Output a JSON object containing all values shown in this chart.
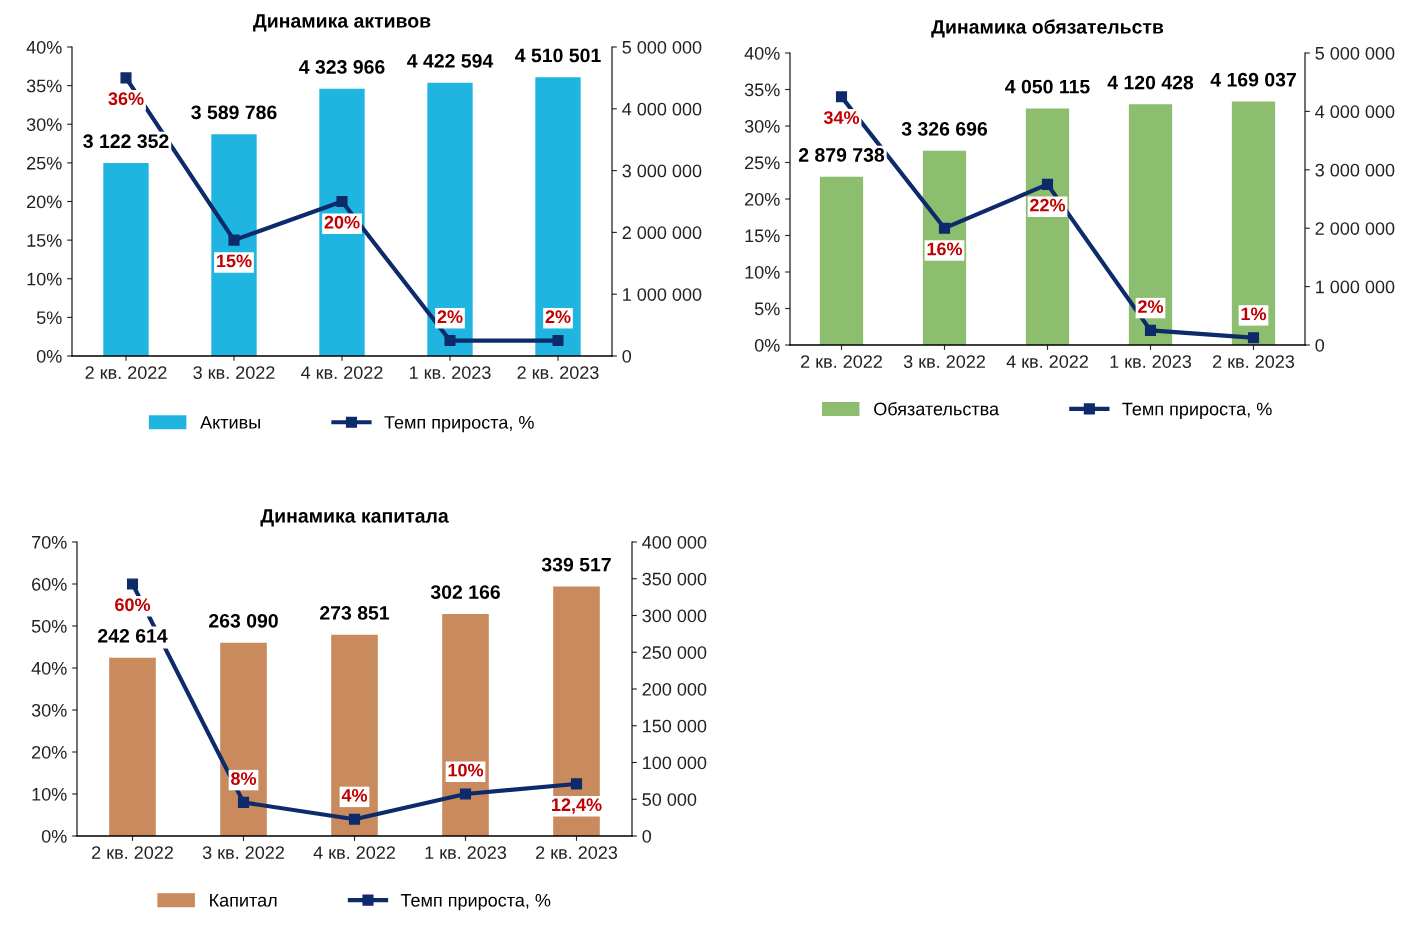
{
  "chart_data": [
    {
      "type": "bar",
      "title": "Динамика активов",
      "categories": [
        "2 кв. 2022",
        "3 кв. 2022",
        "4 кв. 2022",
        "1 кв. 2023",
        "2 кв. 2023"
      ],
      "series": [
        {
          "name": "Активы",
          "type": "bar",
          "axis": "y2",
          "color": "#1fb5e0",
          "values": [
            3122352,
            3589786,
            4323966,
            4422594,
            4510501
          ],
          "value_labels": [
            "3 122 352",
            "3 589 786",
            "4 323 966",
            "4 422 594",
            "4 510 501"
          ]
        },
        {
          "name": "Темп прироста, %",
          "type": "line",
          "axis": "y",
          "color": "#0d2b6b",
          "values": [
            36,
            15,
            20,
            2,
            2
          ],
          "value_labels": [
            "36%",
            "15%",
            "20%",
            "2%",
            "2%"
          ]
        }
      ],
      "ylim": [
        0,
        40
      ],
      "yticks": [
        {
          "value": 0,
          "label": "0%"
        },
        {
          "value": 5,
          "label": "5%"
        },
        {
          "value": 10,
          "label": "10%"
        },
        {
          "value": 15,
          "label": "15%"
        },
        {
          "value": 20,
          "label": "20%"
        },
        {
          "value": 25,
          "label": "25%"
        },
        {
          "value": 30,
          "label": "30%"
        },
        {
          "value": 35,
          "label": "35%"
        },
        {
          "value": 40,
          "label": "40%"
        }
      ],
      "y2lim": [
        0,
        5000000
      ],
      "y2ticks": [
        0,
        {
          "value": 1000000,
          "label": "1 000 000"
        },
        {
          "value": 2000000,
          "label": "2 000 000"
        },
        {
          "value": 3000000,
          "label": "3 000 000"
        },
        {
          "value": 4000000,
          "label": "4 000 000"
        },
        {
          "value": 5000000,
          "label": "5 000 000"
        }
      ],
      "marker": "square",
      "legend": "bottom",
      "grid": false
    },
    {
      "type": "bar",
      "title": "Динамика обязательств",
      "categories": [
        "2 кв. 2022",
        "3 кв. 2022",
        "4 кв. 2022",
        "1 кв. 2023",
        "2 кв. 2023"
      ],
      "series": [
        {
          "name": "Обязательства",
          "type": "bar",
          "axis": "y2",
          "color": "#8dbd6e",
          "values": [
            2879738,
            3326696,
            4050115,
            4120428,
            4169037
          ],
          "value_labels": [
            "2 879 738",
            "3 326 696",
            "4 050 115",
            "4 120 428",
            "4 169 037"
          ]
        },
        {
          "name": "Темп прироста, %",
          "type": "line",
          "axis": "y",
          "color": "#0d2b6b",
          "values": [
            34,
            16,
            22,
            2,
            1
          ],
          "value_labels": [
            "34%",
            "16%",
            "22%",
            "2%",
            "1%"
          ]
        }
      ],
      "ylim": [
        0,
        40
      ],
      "yticks": [
        {
          "value": 0,
          "label": "0%"
        },
        {
          "value": 5,
          "label": "5%"
        },
        {
          "value": 10,
          "label": "10%"
        },
        {
          "value": 15,
          "label": "15%"
        },
        {
          "value": 20,
          "label": "20%"
        },
        {
          "value": 25,
          "label": "25%"
        },
        {
          "value": 30,
          "label": "30%"
        },
        {
          "value": 35,
          "label": "35%"
        },
        {
          "value": 40,
          "label": "40%"
        }
      ],
      "y2lim": [
        0,
        5000000
      ],
      "y2ticks": [
        0,
        {
          "value": 1000000,
          "label": "1 000 000"
        },
        {
          "value": 2000000,
          "label": "2 000 000"
        },
        {
          "value": 3000000,
          "label": "3 000 000"
        },
        {
          "value": 4000000,
          "label": "4 000 000"
        },
        {
          "value": 5000000,
          "label": "5 000 000"
        }
      ],
      "marker": "square",
      "legend": "bottom",
      "grid": false
    },
    {
      "type": "bar",
      "title": "Динамика капитала",
      "categories": [
        "2 кв. 2022",
        "3 кв. 2022",
        "4 кв. 2022",
        "1 кв. 2023",
        "2 кв. 2023"
      ],
      "series": [
        {
          "name": "Капитал",
          "type": "bar",
          "axis": "y2",
          "color": "#c98a5e",
          "values": [
            242614,
            263090,
            273851,
            302166,
            339517
          ],
          "value_labels": [
            "242 614",
            "263 090",
            "273 851",
            "302 166",
            "339 517"
          ]
        },
        {
          "name": "Темп прироста, %",
          "type": "line",
          "axis": "y",
          "color": "#0d2b6b",
          "values": [
            60,
            8,
            4,
            10,
            12.4
          ],
          "value_labels": [
            "60%",
            "8%",
            "4%",
            "10%",
            "12,4%"
          ]
        }
      ],
      "ylim": [
        0,
        70
      ],
      "yticks": [
        {
          "value": 0,
          "label": "0%"
        },
        {
          "value": 10,
          "label": "10%"
        },
        {
          "value": 20,
          "label": "20%"
        },
        {
          "value": 30,
          "label": "30%"
        },
        {
          "value": 40,
          "label": "40%"
        },
        {
          "value": 50,
          "label": "50%"
        },
        {
          "value": 60,
          "label": "60%"
        },
        {
          "value": 70,
          "label": "70%"
        }
      ],
      "y2lim": [
        0,
        400000
      ],
      "y2ticks": [
        0,
        {
          "value": 50000,
          "label": "50 000"
        },
        {
          "value": 100000,
          "label": "100 000"
        },
        {
          "value": 150000,
          "label": "150 000"
        },
        {
          "value": 200000,
          "label": "200 000"
        },
        {
          "value": 250000,
          "label": "250 000"
        },
        {
          "value": 300000,
          "label": "300 000"
        },
        {
          "value": 350000,
          "label": "350 000"
        },
        {
          "value": 400000,
          "label": "400 000"
        }
      ],
      "marker": "square",
      "legend": "bottom",
      "grid": false
    }
  ]
}
